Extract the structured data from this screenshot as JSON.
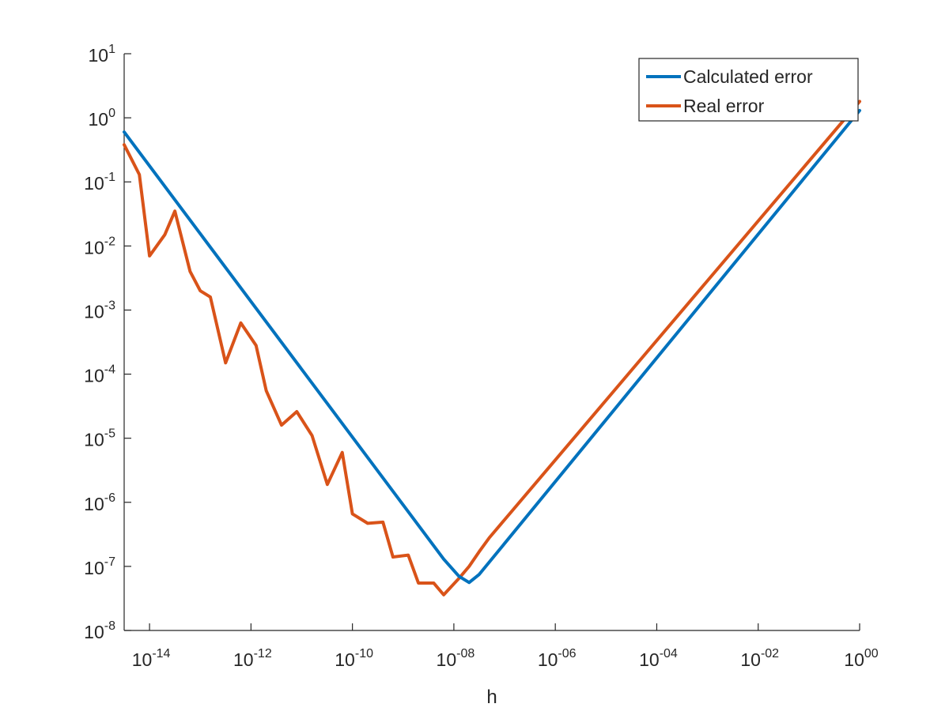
{
  "chart_data": {
    "type": "line",
    "title": "",
    "xlabel": "h",
    "ylabel": "",
    "xscale": "log",
    "yscale": "log",
    "xlim": [
      3.16e-15,
      1
    ],
    "ylim": [
      1e-08,
      10
    ],
    "grid": false,
    "legend_position": "top-right",
    "x_ticks": [
      {
        "value": 1e-14,
        "base": "10",
        "exp": "-14"
      },
      {
        "value": 1e-12,
        "base": "10",
        "exp": "-12"
      },
      {
        "value": 1e-10,
        "base": "10",
        "exp": "-10"
      },
      {
        "value": 1e-08,
        "base": "10",
        "exp": "-08"
      },
      {
        "value": 1e-06,
        "base": "10",
        "exp": "-06"
      },
      {
        "value": 0.0001,
        "base": "10",
        "exp": "-04"
      },
      {
        "value": 0.01,
        "base": "10",
        "exp": "-02"
      },
      {
        "value": 1,
        "base": "10",
        "exp": "00"
      }
    ],
    "y_ticks": [
      {
        "value": 1e-08,
        "base": "10",
        "exp": "-8"
      },
      {
        "value": 1e-07,
        "base": "10",
        "exp": "-7"
      },
      {
        "value": 1e-06,
        "base": "10",
        "exp": "-6"
      },
      {
        "value": 1e-05,
        "base": "10",
        "exp": "-5"
      },
      {
        "value": 0.0001,
        "base": "10",
        "exp": "-4"
      },
      {
        "value": 0.001,
        "base": "10",
        "exp": "-3"
      },
      {
        "value": 0.01,
        "base": "10",
        "exp": "-2"
      },
      {
        "value": 0.1,
        "base": "10",
        "exp": "-1"
      },
      {
        "value": 1,
        "base": "10",
        "exp": "0"
      },
      {
        "value": 10,
        "base": "10",
        "exp": "1"
      }
    ],
    "series": [
      {
        "name": "Calculated error",
        "color": "#0072BD",
        "x": [
          3.16e-15,
          6.3e-09,
          1.26e-08,
          2e-08,
          3.16e-08,
          1
        ],
        "y": [
          0.6,
          1.3e-07,
          7e-08,
          5.6e-08,
          7.5e-08,
          1.3
        ]
      },
      {
        "name": "Real error",
        "color": "#D95319",
        "x": [
          3.16e-15,
          6.3e-15,
          1e-14,
          2e-14,
          3.16e-14,
          6.3e-14,
          1e-13,
          1.58e-13,
          3.16e-13,
          6.3e-13,
          1.26e-12,
          2e-12,
          4e-12,
          8e-12,
          1.6e-11,
          3.2e-11,
          6.3e-11,
          1e-10,
          2e-10,
          4e-10,
          6.3e-10,
          1.26e-09,
          2e-09,
          4e-09,
          6.3e-09,
          1.26e-08,
          2e-08,
          3.16e-08,
          5e-08,
          1
        ],
        "y": [
          0.38,
          0.13,
          0.007,
          0.015,
          0.035,
          0.004,
          0.002,
          0.0016,
          0.00015,
          0.00063,
          0.00028,
          5.5e-05,
          1.6e-05,
          2.6e-05,
          1.1e-05,
          1.9e-06,
          6e-06,
          6.6e-07,
          4.7e-07,
          4.9e-07,
          1.4e-07,
          1.5e-07,
          5.5e-08,
          5.5e-08,
          3.6e-08,
          6.5e-08,
          1e-07,
          1.7e-07,
          2.8e-07,
          1.8
        ]
      }
    ]
  }
}
